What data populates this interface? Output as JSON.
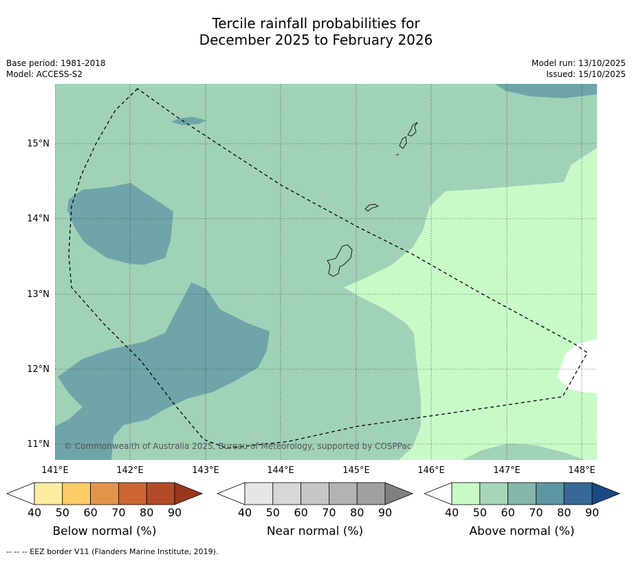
{
  "title_line1": "Tercile rainfall probabilities for",
  "title_line2": "December 2025 to February 2026",
  "base_period": "Base period: 1981-2018",
  "model": "Model: ACCESS-S2",
  "model_run": "Model run: 13/10/2025",
  "issued": "Issued: 15/10/2025",
  "copyright": "© Commonwealth of Australia 2025, Bureau of Meteorology, supported by COSPPac",
  "lon_labels": [
    "141°E",
    "142°E",
    "143°E",
    "144°E",
    "145°E",
    "146°E",
    "147°E",
    "148°E"
  ],
  "lat_labels": [
    "15°N",
    "14°N",
    "13°N",
    "12°N",
    "11°N"
  ],
  "colorbars": [
    {
      "title": "Below normal (%)",
      "ticks": [
        "40",
        "50",
        "60",
        "70",
        "80",
        "90"
      ],
      "colors": [
        "#ffffff",
        "#fdeb9f",
        "#fecc66",
        "#e2954a",
        "#cd6533",
        "#b24a27",
        "#99361f"
      ]
    },
    {
      "title": "Near normal (%)",
      "ticks": [
        "40",
        "50",
        "60",
        "70",
        "80",
        "90"
      ],
      "colors": [
        "#ffffff",
        "#e6e6e6",
        "#d7d7d7",
        "#c6c6c6",
        "#b3b3b3",
        "#a0a0a0",
        "#808080"
      ]
    },
    {
      "title": "Above normal (%)",
      "ticks": [
        "40",
        "50",
        "60",
        "70",
        "80",
        "90"
      ],
      "colors": [
        "#ffffff",
        "#c8fac8",
        "#a6d6b8",
        "#84b6aa",
        "#5c96a2",
        "#356a98",
        "#1a4a85"
      ]
    }
  ],
  "legend_note": "--  --  -- EEZ border V11 (Flanders Marine Institute, 2019)."
}
